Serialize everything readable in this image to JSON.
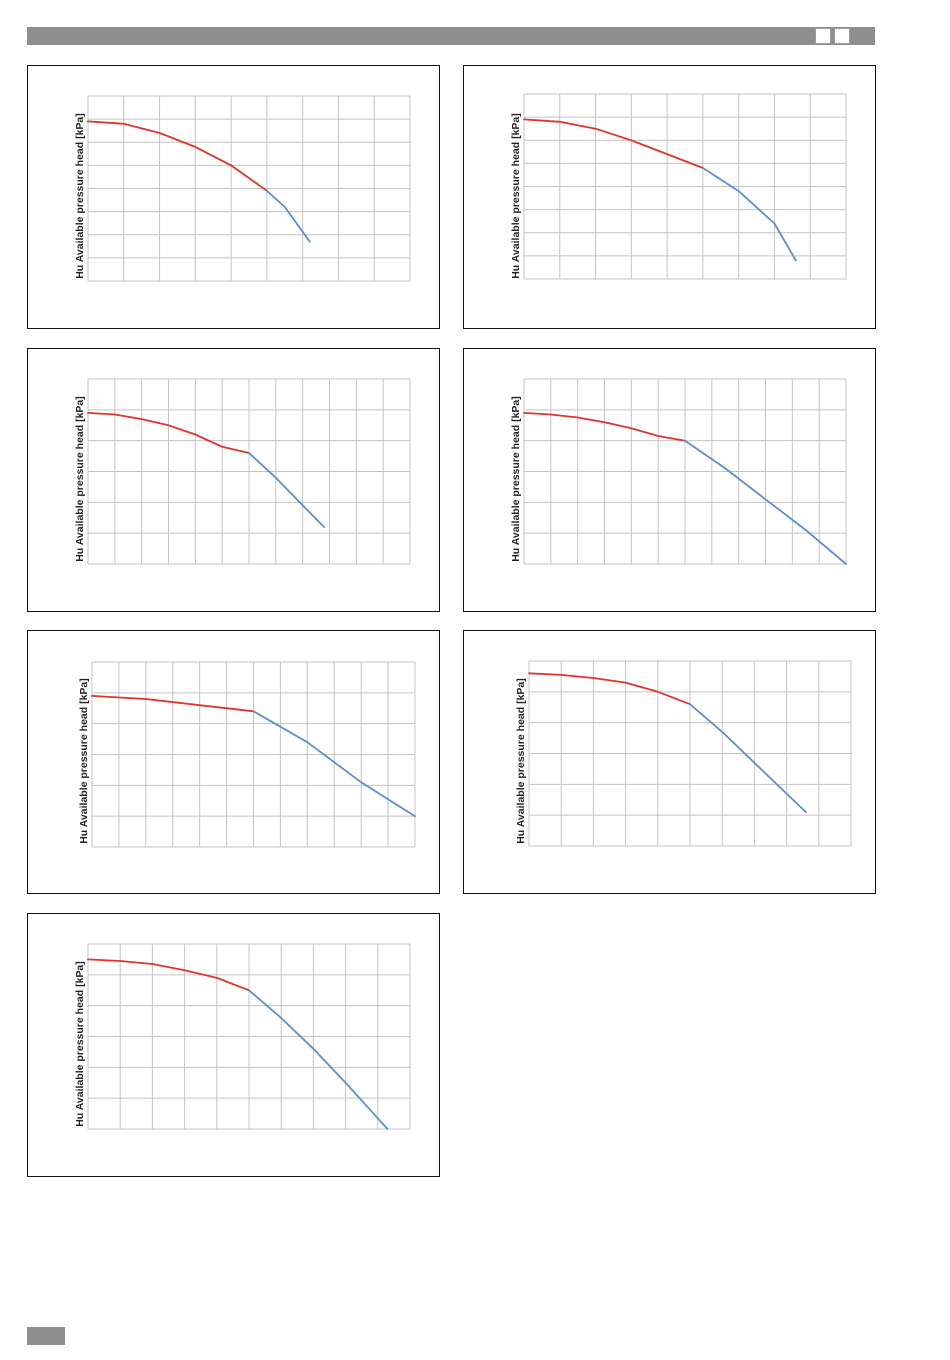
{
  "header": {
    "bar_color": "#8f8f8f"
  },
  "colors": {
    "red": "#e0332b",
    "blue": "#5b8fd0",
    "grid": "#c4c4c4"
  },
  "chart_data": [
    {
      "type": "line",
      "ylabel": "Hu Available pressure head [kPa]",
      "xlim": [
        0,
        9
      ],
      "ylim": [
        0,
        8
      ],
      "grid": true,
      "series": [
        {
          "color": "#e0332b",
          "x": [
            0,
            1,
            2,
            3,
            4,
            5
          ],
          "y": [
            6.9,
            6.8,
            6.4,
            5.8,
            5.0,
            3.9
          ]
        },
        {
          "color": "#5b8fd0",
          "x": [
            5,
            5.5,
            6.2
          ],
          "y": [
            3.9,
            3.2,
            1.7
          ]
        }
      ]
    },
    {
      "type": "line",
      "ylabel": "Hu Available pressure head [kPa]",
      "xlim": [
        0,
        9
      ],
      "ylim": [
        0,
        8
      ],
      "grid": true,
      "series": [
        {
          "color": "#e0332b",
          "x": [
            0,
            1,
            2,
            3,
            4,
            5
          ],
          "y": [
            6.9,
            6.8,
            6.5,
            6.0,
            5.4,
            4.8
          ]
        },
        {
          "color": "#5b8fd0",
          "x": [
            5,
            6,
            7,
            7.6
          ],
          "y": [
            4.8,
            3.8,
            2.4,
            0.8
          ]
        }
      ]
    },
    {
      "type": "line",
      "ylabel": "Hu Available pressure head [kPa]",
      "xlim": [
        0,
        12
      ],
      "ylim": [
        0,
        6
      ],
      "grid": true,
      "series": [
        {
          "color": "#e0332b",
          "x": [
            0,
            1,
            2,
            3,
            4,
            5,
            6
          ],
          "y": [
            4.9,
            4.85,
            4.7,
            4.5,
            4.2,
            3.8,
            3.6
          ]
        },
        {
          "color": "#5b8fd0",
          "x": [
            6,
            7,
            8,
            8.8
          ],
          "y": [
            3.6,
            2.8,
            1.9,
            1.2
          ]
        }
      ]
    },
    {
      "type": "line",
      "ylabel": "Hu Available pressure head [kPa]",
      "xlim": [
        0,
        12
      ],
      "ylim": [
        0,
        6
      ],
      "grid": true,
      "series": [
        {
          "color": "#e0332b",
          "x": [
            0,
            1,
            2,
            3,
            4,
            5,
            6
          ],
          "y": [
            4.9,
            4.85,
            4.75,
            4.6,
            4.4,
            4.15,
            4.0
          ]
        },
        {
          "color": "#5b8fd0",
          "x": [
            6,
            7.5,
            9,
            10.5,
            12
          ],
          "y": [
            4.0,
            3.1,
            2.1,
            1.1,
            0
          ]
        }
      ]
    },
    {
      "type": "line",
      "ylabel": "Hu Available pressure head [kPa]",
      "xlim": [
        0,
        12
      ],
      "ylim": [
        0,
        6
      ],
      "grid": true,
      "series": [
        {
          "color": "#e0332b",
          "x": [
            0,
            2,
            4,
            6
          ],
          "y": [
            4.9,
            4.8,
            4.6,
            4.4
          ]
        },
        {
          "color": "#5b8fd0",
          "x": [
            6,
            8,
            10,
            12
          ],
          "y": [
            4.4,
            3.4,
            2.1,
            1.0
          ]
        }
      ]
    },
    {
      "type": "line",
      "ylabel": "Hu Available pressure head [kPa]",
      "xlim": [
        0,
        10
      ],
      "ylim": [
        0,
        6
      ],
      "grid": true,
      "series": [
        {
          "color": "#e0332b",
          "x": [
            0,
            1,
            2,
            3,
            4,
            5
          ],
          "y": [
            5.6,
            5.55,
            5.45,
            5.3,
            5.0,
            4.6
          ]
        },
        {
          "color": "#5b8fd0",
          "x": [
            5,
            6,
            7,
            8.6
          ],
          "y": [
            4.6,
            3.7,
            2.7,
            1.1
          ]
        }
      ]
    },
    {
      "type": "line",
      "ylabel": "Hu Available pressure head [kPa]",
      "xlim": [
        0,
        10
      ],
      "ylim": [
        0,
        6
      ],
      "grid": true,
      "series": [
        {
          "color": "#e0332b",
          "x": [
            0,
            1,
            2,
            3,
            4,
            5
          ],
          "y": [
            5.5,
            5.45,
            5.35,
            5.15,
            4.9,
            4.5
          ]
        },
        {
          "color": "#5b8fd0",
          "x": [
            5,
            6,
            7,
            8,
            9.3
          ],
          "y": [
            4.5,
            3.6,
            2.6,
            1.5,
            0
          ]
        }
      ]
    }
  ]
}
